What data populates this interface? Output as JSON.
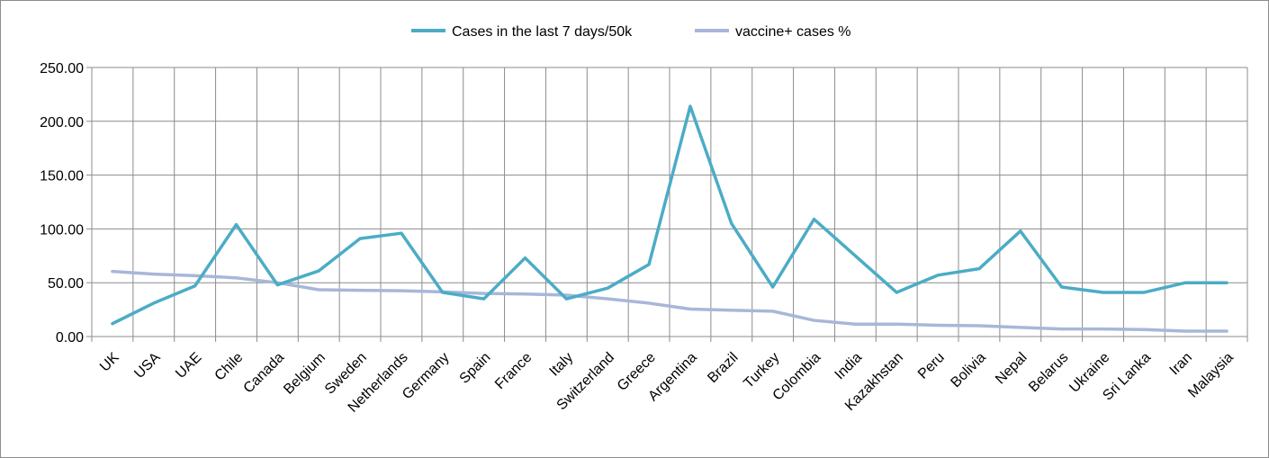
{
  "chart_data": {
    "type": "line",
    "title": "",
    "xlabel": "",
    "ylabel": "",
    "ylim": [
      0,
      250
    ],
    "y_ticks": [
      "0.00",
      "50.00",
      "100.00",
      "150.00",
      "200.00",
      "250.00"
    ],
    "grid": true,
    "legend_position": "top",
    "categories": [
      "UK",
      "USA",
      "UAE",
      "Chile",
      "Canada",
      "Belgium",
      "Sweden",
      "Netherlands",
      "Germany",
      "Spain",
      "France",
      "Italy",
      "Switzerland",
      "Greece",
      "Argentina",
      "Brazil",
      "Turkey",
      "Colombia",
      "India",
      "Kazakhstan",
      "Peru",
      "Bolivia",
      "Nepal",
      "Belarus",
      "Ukraine",
      "Sri Lanka",
      "Iran",
      "Malaysia"
    ],
    "series": [
      {
        "name": "Cases in the last 7 days/50k",
        "color": "#4bacc6",
        "values": [
          12,
          31,
          47,
          104,
          48,
          61,
          91,
          96,
          41,
          35,
          73,
          35,
          45,
          67,
          214,
          105,
          46,
          109,
          75,
          41,
          57,
          63,
          98,
          46,
          41,
          41,
          50,
          50
        ]
      },
      {
        "name": "vaccine+ cases %",
        "color": "#a7b7d9",
        "values": [
          60.5,
          58,
          56.5,
          54.5,
          50,
          43.5,
          43,
          42.5,
          41.5,
          40,
          39.5,
          38.5,
          35,
          31,
          25.5,
          24.5,
          23.5,
          15,
          11.5,
          11.5,
          10.5,
          10,
          8.5,
          7,
          7,
          6.5,
          5,
          5
        ]
      }
    ]
  }
}
